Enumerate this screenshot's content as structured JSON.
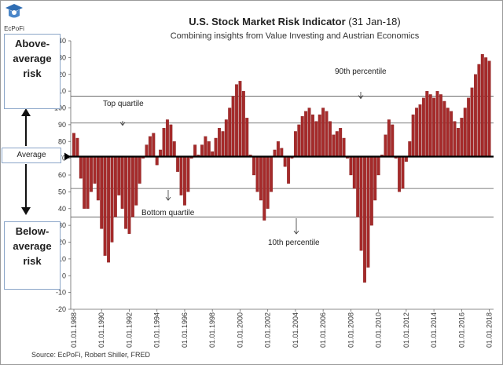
{
  "header": {
    "logo_text": "EcPoFi",
    "title": "U.S. Stock Market Risk Indicator",
    "title_date": "(31 Jan-18)",
    "subtitle": "Combining insights from Value Investing and Austrian Economics"
  },
  "side_labels": {
    "above": [
      "Above-",
      "average",
      "risk"
    ],
    "average": "Average",
    "below": [
      "Below-",
      "average",
      "risk"
    ]
  },
  "source": "Source: EcPoFi, Robert Shiller, FRED",
  "colors": {
    "bar": "#a52a2a",
    "bar_edge": "#7a1a1a",
    "axis": "#000000",
    "ref_line": "#555555",
    "box_border": "#8aa5c8"
  },
  "chart_data": {
    "type": "bar",
    "title": "U.S. Stock Market Risk Indicator (31 Jan-18)",
    "subtitle": "Combining insights from Value Investing and Austrian Economics",
    "xlabel": "",
    "ylabel": "",
    "ylim": [
      -20,
      140
    ],
    "yticks": [
      -20,
      -10,
      0,
      10,
      20,
      30,
      40,
      50,
      60,
      70,
      80,
      90,
      100,
      110,
      120,
      130,
      140
    ],
    "baseline": 71,
    "x_range": [
      1988.0,
      2018.08
    ],
    "xtick_labels": [
      "01.01.1988",
      "01.01.1990",
      "01.01.1992",
      "01.01.1994",
      "01.01.1996",
      "01.01.1998",
      "01.01.2000",
      "01.01.2002",
      "01.01.2004",
      "01.01.2006",
      "01.01.2008",
      "01.01.2010",
      "01.01.2012",
      "01.01.2014",
      "01.01.2016",
      "01.01.2018"
    ],
    "xtick_years": [
      1988,
      1990,
      1992,
      1994,
      1996,
      1998,
      2000,
      2002,
      2004,
      2006,
      2008,
      2010,
      2012,
      2014,
      2016,
      2018
    ],
    "reference_lines": [
      {
        "name": "90th percentile",
        "value": 107
      },
      {
        "name": "Top quartile",
        "value": 91
      },
      {
        "name": "Bottom quartile",
        "value": 52
      },
      {
        "name": "10th percentile",
        "value": 35
      }
    ],
    "annotations": {
      "p90": "90th percentile",
      "top_q": "Top quartile",
      "bottom_q": "Bottom quartile",
      "p10": "10th percentile"
    },
    "series": [
      {
        "name": "Risk indicator",
        "x": [
          1988.0,
          1988.25,
          1988.5,
          1988.75,
          1989.0,
          1989.25,
          1989.5,
          1989.75,
          1990.0,
          1990.25,
          1990.5,
          1990.75,
          1991.0,
          1991.25,
          1991.5,
          1991.75,
          1992.0,
          1992.25,
          1992.5,
          1992.75,
          1993.0,
          1993.25,
          1993.5,
          1993.75,
          1994.0,
          1994.25,
          1994.5,
          1994.75,
          1995.0,
          1995.25,
          1995.5,
          1995.75,
          1996.0,
          1996.25,
          1996.5,
          1996.75,
          1997.0,
          1997.25,
          1997.5,
          1997.75,
          1998.0,
          1998.25,
          1998.5,
          1998.75,
          1999.0,
          1999.25,
          1999.5,
          1999.75,
          2000.0,
          2000.25,
          2000.5,
          2000.75,
          2001.0,
          2001.25,
          2001.5,
          2001.75,
          2002.0,
          2002.25,
          2002.5,
          2002.75,
          2003.0,
          2003.25,
          2003.5,
          2003.75,
          2004.0,
          2004.25,
          2004.5,
          2004.75,
          2005.0,
          2005.25,
          2005.5,
          2005.75,
          2006.0,
          2006.25,
          2006.5,
          2006.75,
          2007.0,
          2007.25,
          2007.5,
          2007.75,
          2008.0,
          2008.25,
          2008.5,
          2008.75,
          2009.0,
          2009.25,
          2009.5,
          2009.75,
          2010.0,
          2010.25,
          2010.5,
          2010.75,
          2011.0,
          2011.25,
          2011.5,
          2011.75,
          2012.0,
          2012.25,
          2012.5,
          2012.75,
          2013.0,
          2013.25,
          2013.5,
          2013.75,
          2014.0,
          2014.25,
          2014.5,
          2014.75,
          2015.0,
          2015.25,
          2015.5,
          2015.75,
          2016.0,
          2016.25,
          2016.5,
          2016.75,
          2017.0,
          2017.25,
          2017.5,
          2017.75,
          2018.0
        ],
        "values": [
          85,
          82,
          58,
          40,
          40,
          50,
          55,
          45,
          28,
          12,
          8,
          20,
          35,
          48,
          40,
          28,
          25,
          35,
          42,
          55,
          70,
          78,
          83,
          85,
          66,
          75,
          88,
          93,
          90,
          80,
          62,
          48,
          42,
          50,
          70,
          78,
          72,
          78,
          83,
          80,
          74,
          82,
          88,
          86,
          93,
          100,
          107,
          114,
          116,
          110,
          94,
          72,
          60,
          50,
          45,
          33,
          40,
          50,
          75,
          80,
          76,
          65,
          55,
          70,
          86,
          90,
          95,
          98,
          100,
          96,
          92,
          96,
          100,
          98,
          92,
          84,
          86,
          88,
          82,
          70,
          60,
          52,
          35,
          15,
          -4,
          5,
          30,
          45,
          60,
          72,
          84,
          93,
          90,
          70,
          50,
          52,
          68,
          80,
          96,
          100,
          102,
          106,
          110,
          108,
          106,
          110,
          108,
          104,
          100,
          98,
          92,
          88,
          94,
          100,
          106,
          112,
          120,
          126,
          132,
          130,
          128
        ]
      }
    ]
  }
}
